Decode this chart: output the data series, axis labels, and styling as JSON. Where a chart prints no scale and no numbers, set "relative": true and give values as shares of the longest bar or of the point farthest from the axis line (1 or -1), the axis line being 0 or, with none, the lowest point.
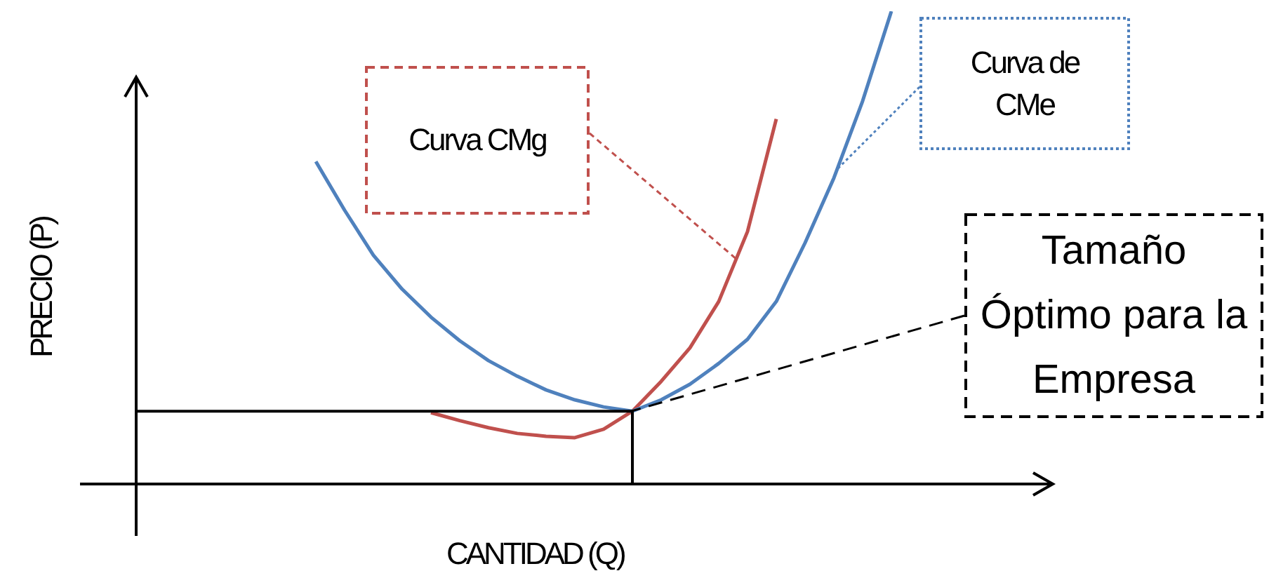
{
  "chart_data": {
    "type": "line",
    "relative": true,
    "xlabel": "CANTIDAD (Q)",
    "ylabel": "PRECIO (P)",
    "grid": false,
    "legend": false,
    "marker": "none",
    "categories": [
      null,
      null,
      null,
      null,
      null,
      null,
      null,
      null,
      null,
      null,
      null,
      null,
      null,
      null,
      null,
      null,
      null,
      null,
      null,
      null,
      null,
      null,
      null,
      null,
      null,
      null,
      null,
      null,
      null,
      null,
      null,
      null
    ],
    "series": [
      {
        "color": "#4f81bd",
        "values": [
          null,
          null,
          null,
          null,
          null,
          null,
          0.682,
          0.579,
          0.484,
          0.412,
          0.353,
          0.303,
          0.261,
          0.228,
          0.199,
          0.178,
          0.163,
          0.154,
          0.178,
          0.211,
          0.255,
          0.306,
          0.386,
          0.51,
          0.647,
          0.81,
          1.0,
          null,
          null,
          null,
          null,
          null
        ]
      },
      {
        "color": "#c0504d",
        "values": [
          null,
          null,
          null,
          null,
          null,
          null,
          null,
          null,
          null,
          null,
          0.151,
          0.134,
          0.119,
          0.107,
          0.101,
          0.098,
          0.116,
          0.154,
          0.217,
          0.288,
          0.386,
          0.534,
          0.772,
          null,
          null,
          null,
          null,
          null,
          null,
          null,
          null,
          null
        ]
      }
    ],
    "ref_lines": [
      {
        "axis": "y",
        "value": 0.154,
        "color": "#000000"
      }
    ],
    "annotations": [
      "Curva CMg",
      "Curva de CMe",
      "Tamaño Óptimo para la Empresa"
    ]
  }
}
